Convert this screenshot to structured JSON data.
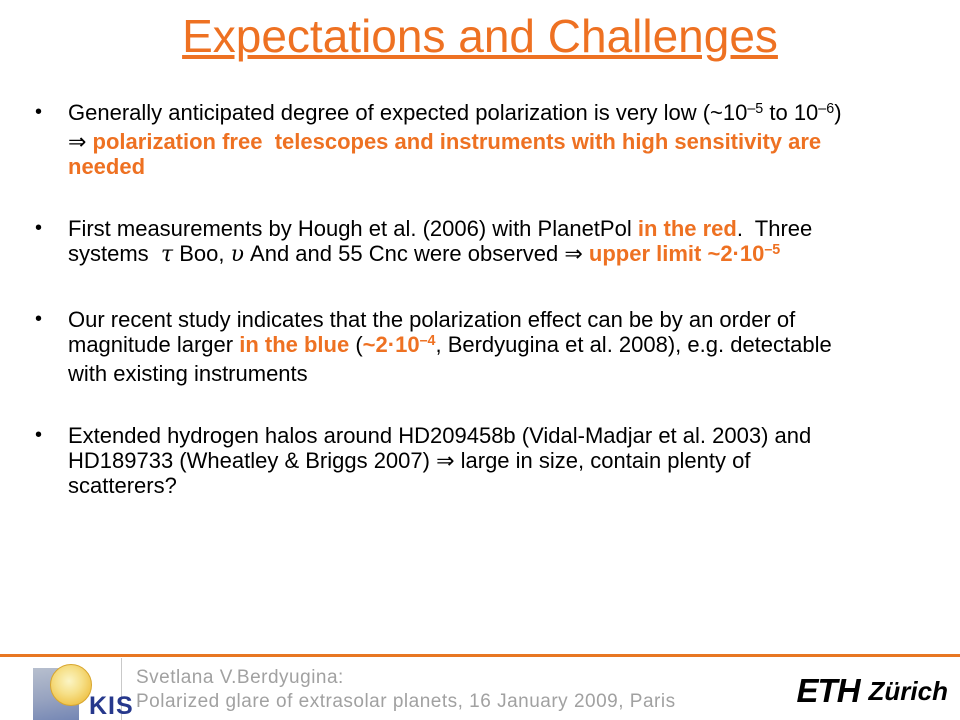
{
  "title": "Expectations and Challenges",
  "bullet_char": "•",
  "colors": {
    "accent_orange": "#EE7122",
    "text_black": "#000000",
    "footer_gray": "#A1A1A1",
    "kis_blue": "#26388C",
    "footer_rule_orange": "#E87722"
  },
  "bullets": [
    {
      "segments": [
        {
          "t": "Generally anticipated degree of expected polarization is very low (~10",
          "s": "n"
        },
        {
          "t": "–5",
          "s": "sup"
        },
        {
          "t": " to 10",
          "s": "n"
        },
        {
          "t": "–6",
          "s": "sup"
        },
        {
          "t": ")",
          "s": "n"
        },
        {
          "t": "",
          "s": "br"
        },
        {
          "t": "⇒ ",
          "s": "n"
        },
        {
          "t": "polarization free  telescopes and instruments with high sensitivity are",
          "s": "o"
        },
        {
          "t": "",
          "s": "br"
        },
        {
          "t": "needed",
          "s": "o"
        }
      ]
    },
    {
      "segments": [
        {
          "t": "First measurements by Hough et al. (2006) with PlanetPol ",
          "s": "n"
        },
        {
          "t": "in the red",
          "s": "o"
        },
        {
          "t": ".  Three",
          "s": "n"
        },
        {
          "t": "",
          "s": "br"
        },
        {
          "t": "systems  ",
          "s": "n"
        },
        {
          "t": "τ",
          "s": "gk"
        },
        {
          "t": " Boo, ",
          "s": "n"
        },
        {
          "t": "υ",
          "s": "gk"
        },
        {
          "t": " And and 55 Cnc were observed ⇒ ",
          "s": "n"
        },
        {
          "t": "upper limit ~2·10",
          "s": "o"
        },
        {
          "t": "–5",
          "s": "osup"
        }
      ]
    },
    {
      "segments": [
        {
          "t": "Our recent study indicates that the polarization effect can be by an order of",
          "s": "n"
        },
        {
          "t": "",
          "s": "br"
        },
        {
          "t": "magnitude larger ",
          "s": "n"
        },
        {
          "t": "in the blue",
          "s": "o"
        },
        {
          "t": " (",
          "s": "n"
        },
        {
          "t": "~2·10",
          "s": "o"
        },
        {
          "t": "–4",
          "s": "osup"
        },
        {
          "t": ", Berdyugina et al. 2008), e.g. detectable",
          "s": "n"
        },
        {
          "t": "",
          "s": "br"
        },
        {
          "t": "with existing instruments",
          "s": "n"
        }
      ]
    },
    {
      "segments": [
        {
          "t": "Extended hydrogen halos around HD209458b (Vidal-Madjar et al. 2003) and",
          "s": "n"
        },
        {
          "t": "",
          "s": "br"
        },
        {
          "t": "HD189733 (Wheatley & Briggs 2007) ⇒ large in size, contain plenty of",
          "s": "n"
        },
        {
          "t": "",
          "s": "br"
        },
        {
          "t": "scatterers?",
          "s": "n"
        }
      ]
    }
  ],
  "footer": {
    "kis_label": "KIS",
    "credit_line1": "Svetlana V.Berdyugina:",
    "credit_line2": "Polarized glare of extrasolar planets, 16 January 2009, Paris",
    "eth_mark": "ETH",
    "eth_city": "Zürich"
  }
}
